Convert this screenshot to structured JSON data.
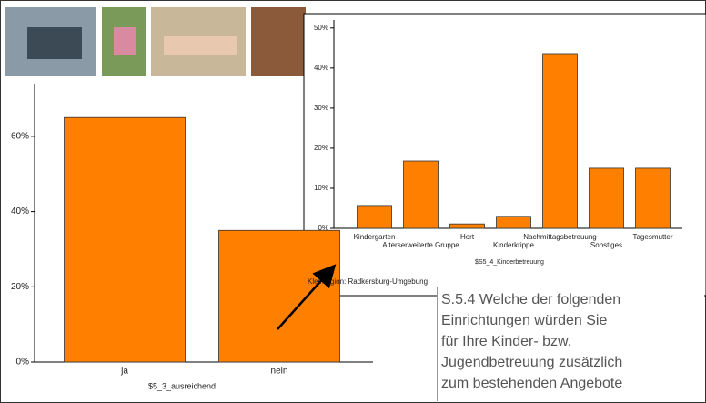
{
  "chart_data": [
    {
      "type": "bar",
      "x_label": "$5_3_ausreichend",
      "categories": [
        "ja",
        "nein"
      ],
      "values": [
        65,
        35
      ],
      "color": "#ff8000",
      "ylim": [
        0,
        74
      ],
      "yticks": [
        {
          "value": 0,
          "label": "0%"
        },
        {
          "value": 20,
          "label": "20%"
        },
        {
          "value": 40,
          "label": "40%"
        },
        {
          "value": 60,
          "label": "60%"
        }
      ]
    },
    {
      "type": "bar",
      "x_label": "$S5_4_Kinderbetreuung",
      "footnote": "Kleinregion: Radkersburg-Umgebung",
      "categories": [
        "Kindergarten",
        "Alterserweiterte Gruppe",
        "Hort",
        "Kinderkrippe",
        "Nachmittagsbetreuung",
        "Sonstiges",
        "Tagesmutter"
      ],
      "values": [
        5.7,
        16.8,
        1.1,
        3,
        43.6,
        15,
        15
      ],
      "color": "#ff8000",
      "ylim": [
        0,
        52
      ],
      "yticks": [
        {
          "value": 0,
          "label": "0%"
        },
        {
          "value": 10,
          "label": "10%"
        },
        {
          "value": 20,
          "label": "20%"
        },
        {
          "value": 30,
          "label": "30%"
        },
        {
          "value": 40,
          "label": "40%"
        },
        {
          "value": 50,
          "label": "50%"
        }
      ]
    }
  ],
  "text_box": [
    "S.5.4 Welche der folgenden",
    "Einrichtungen würden Sie",
    "für Ihre Kinder- bzw.",
    "Jugendbetreuung zusätzlich",
    "zum bestehenden Angebote"
  ]
}
